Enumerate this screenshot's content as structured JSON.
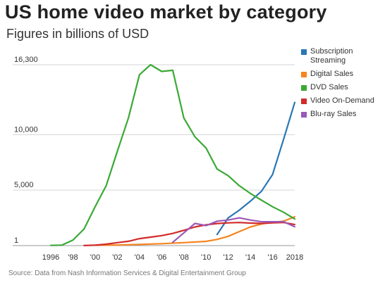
{
  "title": "US home video market by category",
  "subtitle": "Figures in billions of USD",
  "source": "Source: Data from Nash Information Services & Digital Entertainment Group",
  "chart_data": {
    "type": "line",
    "x_ticks": [
      "1996",
      "'98",
      "'00",
      "'02",
      "'04",
      "'06",
      "'08",
      "'10",
      "'12",
      "'14",
      "'16",
      "2018"
    ],
    "y_ticks": [
      "16,300",
      "10,000",
      "5,000",
      "1"
    ],
    "ylim": [
      1,
      16300
    ],
    "xlim": [
      1996,
      2018
    ],
    "grid": "horizontal",
    "legend_position": "right",
    "series": [
      {
        "name": "Subscription Streaming",
        "color": "#2a77b5",
        "points": [
          [
            2011,
            1000
          ],
          [
            2012,
            2500
          ],
          [
            2013,
            3200
          ],
          [
            2014,
            4000
          ],
          [
            2015,
            4900
          ],
          [
            2016,
            6400
          ],
          [
            2017,
            9600
          ],
          [
            2018,
            12900
          ]
        ]
      },
      {
        "name": "Digital Sales",
        "color": "#f5851f",
        "points": [
          [
            2000,
            30
          ],
          [
            2002,
            50
          ],
          [
            2004,
            100
          ],
          [
            2006,
            170
          ],
          [
            2008,
            270
          ],
          [
            2010,
            380
          ],
          [
            2011,
            560
          ],
          [
            2012,
            840
          ],
          [
            2013,
            1260
          ],
          [
            2014,
            1680
          ],
          [
            2015,
            1950
          ],
          [
            2016,
            2100
          ],
          [
            2017,
            2200
          ],
          [
            2018,
            2600
          ]
        ]
      },
      {
        "name": "DVD Sales",
        "color": "#3aa935",
        "points": [
          [
            1996,
            20
          ],
          [
            1997,
            40
          ],
          [
            1998,
            500
          ],
          [
            1999,
            1500
          ],
          [
            2000,
            3500
          ],
          [
            2001,
            5400
          ],
          [
            2002,
            8500
          ],
          [
            2003,
            11500
          ],
          [
            2004,
            15400
          ],
          [
            2005,
            16300
          ],
          [
            2006,
            15700
          ],
          [
            2007,
            15800
          ],
          [
            2008,
            11500
          ],
          [
            2009,
            9800
          ],
          [
            2010,
            8800
          ],
          [
            2011,
            6900
          ],
          [
            2012,
            6300
          ],
          [
            2013,
            5400
          ],
          [
            2014,
            4700
          ],
          [
            2015,
            4100
          ],
          [
            2016,
            3500
          ],
          [
            2017,
            3000
          ],
          [
            2018,
            2400
          ]
        ]
      },
      {
        "name": "Video On-Demand",
        "color": "#d22b2b",
        "points": [
          [
            1999,
            10
          ],
          [
            2000,
            40
          ],
          [
            2001,
            130
          ],
          [
            2002,
            270
          ],
          [
            2003,
            390
          ],
          [
            2004,
            630
          ],
          [
            2005,
            760
          ],
          [
            2006,
            900
          ],
          [
            2007,
            1100
          ],
          [
            2008,
            1380
          ],
          [
            2009,
            1680
          ],
          [
            2010,
            1870
          ],
          [
            2011,
            1990
          ],
          [
            2012,
            2050
          ],
          [
            2013,
            2080
          ],
          [
            2014,
            2030
          ],
          [
            2015,
            2000
          ],
          [
            2016,
            2050
          ],
          [
            2017,
            2080
          ],
          [
            2018,
            1900
          ]
        ]
      },
      {
        "name": "Blu-ray Sales",
        "color": "#9b59b6",
        "points": [
          [
            2007,
            300
          ],
          [
            2008,
            1150
          ],
          [
            2009,
            2000
          ],
          [
            2010,
            1800
          ],
          [
            2011,
            2200
          ],
          [
            2012,
            2300
          ],
          [
            2013,
            2500
          ],
          [
            2014,
            2300
          ],
          [
            2015,
            2150
          ],
          [
            2016,
            2150
          ],
          [
            2017,
            2150
          ],
          [
            2018,
            1700
          ]
        ]
      }
    ]
  }
}
